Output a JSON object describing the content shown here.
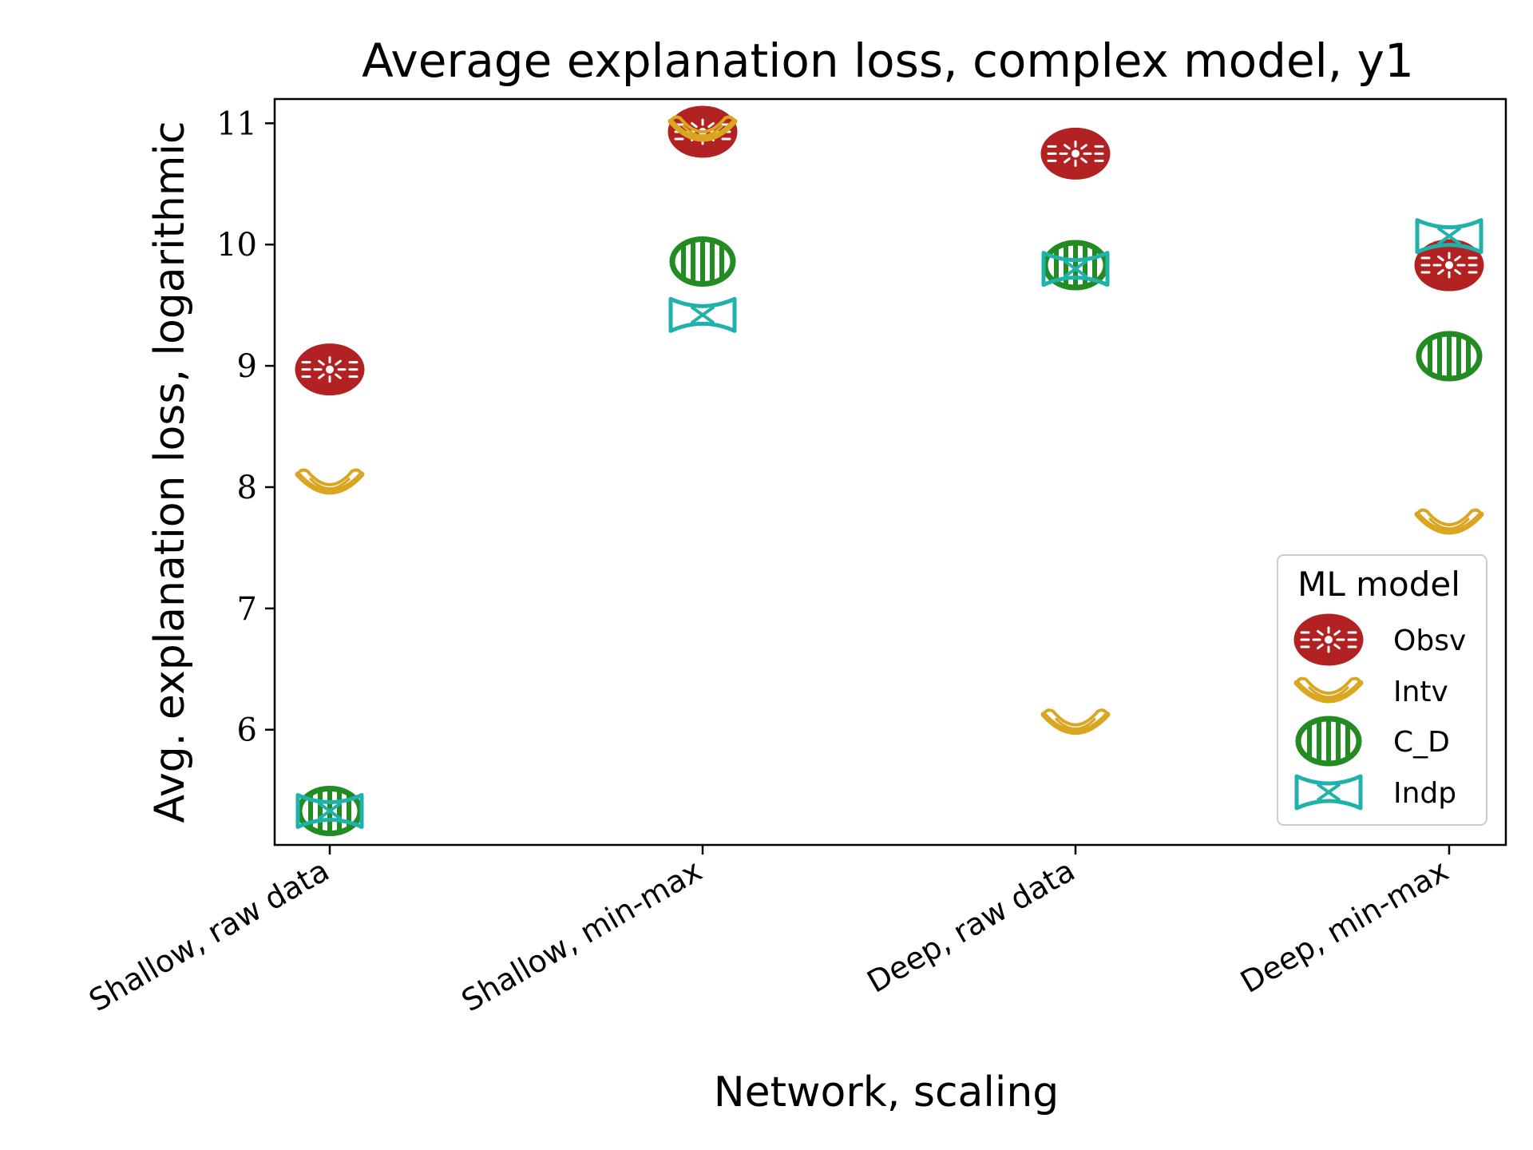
{
  "chart_data": {
    "type": "scatter",
    "title": "Average explanation loss, complex model, y1",
    "xlabel": "Network, scaling",
    "ylabel": "Avg. explanation loss, logarithmic",
    "categories": [
      "Shallow, raw data",
      "Shallow, min-max",
      "Deep, raw data",
      "Deep, min-max"
    ],
    "ylim": [
      5.05,
      11.2
    ],
    "yticks": [
      6,
      7,
      8,
      9,
      10,
      11
    ],
    "grid": false,
    "legend": {
      "title": "ML model",
      "placement": "lower-right"
    },
    "series": [
      {
        "name": "Obsv",
        "color": "#b22222",
        "icon": "rotelle-pasta-icon",
        "values": [
          8.97,
          10.93,
          10.75,
          9.83
        ]
      },
      {
        "name": "Intv",
        "color": "#daa520",
        "icon": "macaroni-pasta-icon",
        "values": [
          8.04,
          10.95,
          6.06,
          7.71
        ]
      },
      {
        "name": "C_D",
        "color": "#228b22",
        "icon": "rigatoni-pasta-icon",
        "values": [
          5.33,
          9.86,
          9.83,
          9.08
        ]
      },
      {
        "name": "Indp",
        "color": "#20b2aa",
        "icon": "farfalle-pasta-icon",
        "values": [
          5.33,
          9.42,
          9.8,
          10.07
        ]
      }
    ]
  }
}
